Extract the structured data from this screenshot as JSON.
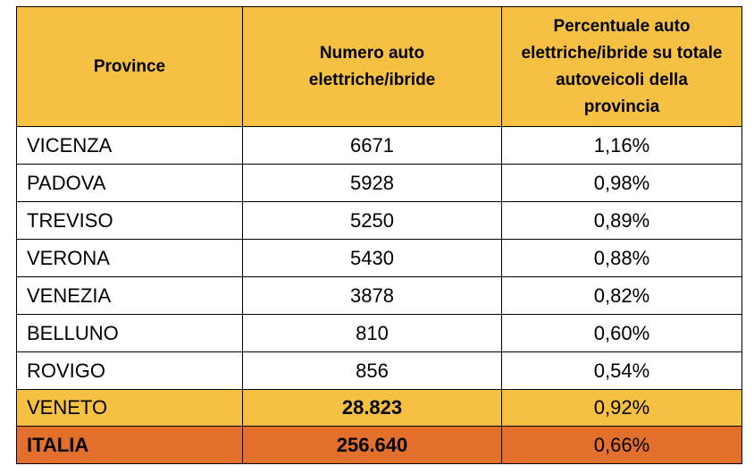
{
  "table": {
    "headers": [
      "Province",
      "Numero auto elettriche/ibride",
      "Percentuale auto elettriche/ibride su totale autoveicoli della provincia"
    ],
    "rows": [
      {
        "province": "VICENZA",
        "count": "6671",
        "percent": "1,16%"
      },
      {
        "province": "PADOVA",
        "count": "5928",
        "percent": "0,98%"
      },
      {
        "province": "TREVISO",
        "count": "5250",
        "percent": "0,89%"
      },
      {
        "province": "VERONA",
        "count": "5430",
        "percent": "0,88%"
      },
      {
        "province": "VENEZIA",
        "count": "3878",
        "percent": "0,82%"
      },
      {
        "province": "BELLUNO",
        "count": "810",
        "percent": "0,60%"
      },
      {
        "province": "ROVIGO",
        "count": "856",
        "percent": "0,54%"
      }
    ],
    "region_total": {
      "province": "VENETO",
      "count": "28.823",
      "percent": "0,92%"
    },
    "national_total": {
      "province": "ITALIA",
      "count": "256.640",
      "percent": "0,66%"
    }
  },
  "colors": {
    "header_bg": "#f6c042",
    "region_row_bg": "#f6c042",
    "national_row_bg": "#e36f2d",
    "border": "#000000"
  }
}
